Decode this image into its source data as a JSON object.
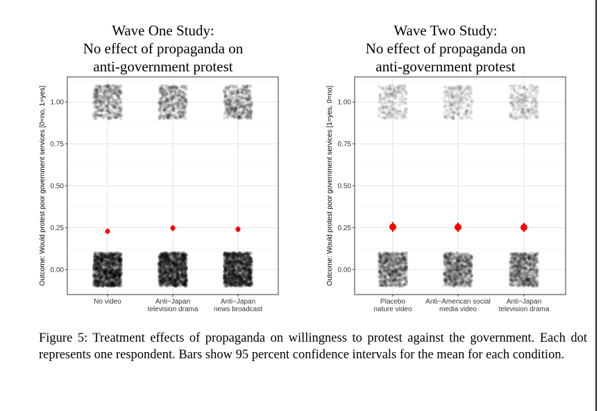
{
  "chart_data": [
    {
      "type": "scatter",
      "title_lines": [
        "Wave One Study:",
        "No effect of propaganda on",
        "anti-government protest"
      ],
      "ylabel": "Outcome: Would protest poor government services [0=no, 1=yes]",
      "categories": [
        {
          "lines": [
            "No video"
          ]
        },
        {
          "lines": [
            "Anti−Japan",
            "television drama"
          ]
        },
        {
          "lines": [
            "Anti−Japan",
            "news broadcast"
          ]
        }
      ],
      "ylim": [
        -0.15,
        1.15
      ],
      "yticks": [
        "0.00",
        "0.25",
        "0.50",
        "0.75",
        "1.00"
      ],
      "grid": true,
      "points": {
        "description_color": "#000000",
        "zero_opacity": "dense",
        "one_opacity": "light"
      },
      "means": [
        0.228,
        0.247,
        0.24
      ],
      "ci_low": [
        0.212,
        0.229,
        0.223
      ],
      "ci_high": [
        0.244,
        0.265,
        0.257
      ],
      "mean_color": "#ff0000"
    },
    {
      "type": "scatter",
      "title_lines": [
        "Wave Two Study:",
        "No effect of propaganda on",
        "anti-government protest"
      ],
      "ylabel": "Outcome: Would protest poor government services [1=yes, 0=no]",
      "categories": [
        {
          "lines": [
            "Placebo",
            "nature video"
          ]
        },
        {
          "lines": [
            "Anti−American social",
            "media video"
          ]
        },
        {
          "lines": [
            "Anti−Japan",
            "television drama"
          ]
        }
      ],
      "ylim": [
        -0.15,
        1.15
      ],
      "yticks": [
        "0.00",
        "0.25",
        "0.50",
        "0.75",
        "1.00"
      ],
      "grid": true,
      "points": {
        "description_color": "#000000",
        "zero_opacity": "medium",
        "one_opacity": "very light"
      },
      "means": [
        0.254,
        0.252,
        0.251
      ],
      "ci_low": [
        0.225,
        0.224,
        0.224
      ],
      "ci_high": [
        0.283,
        0.28,
        0.278
      ],
      "mean_color": "#ff0000"
    }
  ],
  "caption": "Figure 5: Treatment effects of propaganda on willingness to protest against the government. Each dot represents one respondent. Bars show 95 percent confidence intervals for the mean for each condition."
}
